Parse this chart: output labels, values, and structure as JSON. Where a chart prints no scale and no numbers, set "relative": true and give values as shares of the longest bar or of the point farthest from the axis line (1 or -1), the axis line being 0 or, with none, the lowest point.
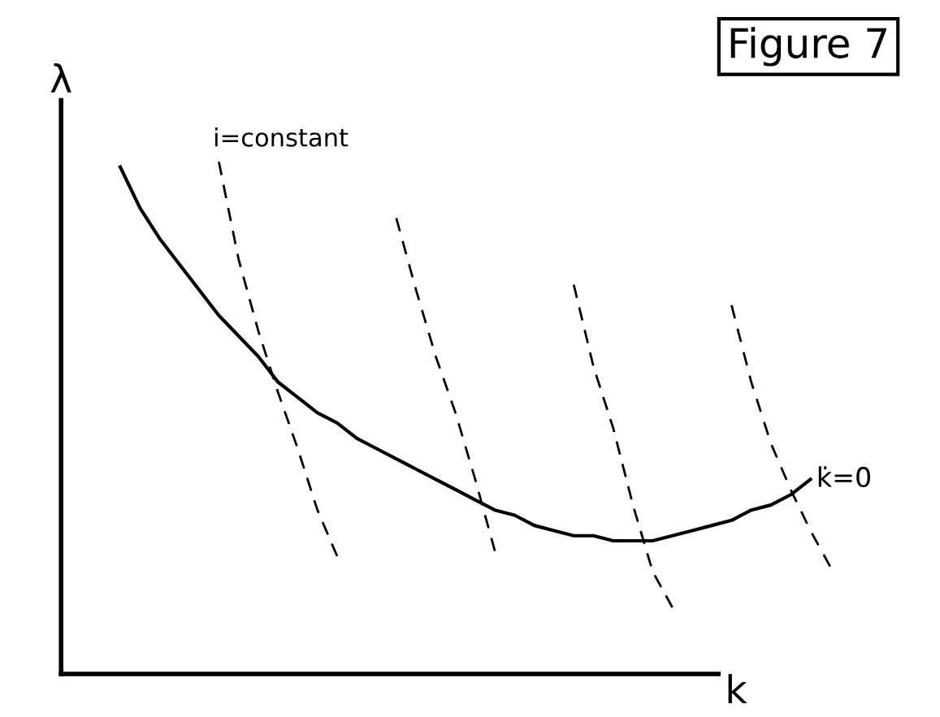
{
  "chart_data": {
    "type": "line",
    "title": "Figure 7",
    "xlabel": "k",
    "ylabel": "λ",
    "relative": true,
    "marker": "none",
    "categories": [
      null,
      null,
      null,
      null,
      null,
      null,
      null,
      null,
      null,
      null,
      null,
      null,
      null,
      null,
      null,
      null,
      null,
      null,
      null,
      null,
      null,
      null,
      null,
      null,
      null,
      null,
      null,
      null,
      null,
      null,
      null,
      null,
      null,
      null,
      null,
      null,
      null,
      null,
      null,
      null,
      null
    ],
    "series": [
      {
        "name": "k̇=0",
        "color": "#000000",
        "line_style": "solid",
        "values": [
          null,
          null,
          null,
          0.99,
          0.91,
          0.85,
          0.8,
          0.75,
          0.7,
          0.66,
          0.62,
          0.57,
          0.54,
          0.51,
          0.49,
          0.46,
          0.44,
          0.42,
          0.4,
          0.38,
          0.36,
          0.34,
          0.32,
          0.31,
          0.29,
          0.28,
          0.27,
          0.27,
          0.26,
          0.26,
          0.26,
          0.27,
          0.28,
          0.29,
          0.3,
          0.32,
          0.33,
          0.35,
          0.38,
          null,
          null
        ]
      },
      {
        "name": "i=constant",
        "color": "#000000",
        "line_style": "dashed",
        "values": [
          null,
          null,
          null,
          null,
          null,
          null,
          null,
          null,
          1.0,
          0.81,
          0.67,
          0.55,
          0.44,
          0.32,
          0.23,
          null,
          null,
          null,
          null,
          null,
          null,
          null,
          null,
          null,
          null,
          null,
          null,
          null,
          null,
          null,
          null,
          null,
          null,
          null,
          null,
          null,
          null,
          null,
          null,
          null,
          null
        ]
      },
      {
        "color": "#000000",
        "line_style": "dashed",
        "values": [
          null,
          null,
          null,
          null,
          null,
          null,
          null,
          null,
          null,
          null,
          null,
          null,
          null,
          null,
          null,
          null,
          null,
          0.89,
          0.75,
          0.62,
          0.51,
          0.38,
          0.24,
          null,
          null,
          null,
          null,
          null,
          null,
          null,
          null,
          null,
          null,
          null,
          null,
          null,
          null,
          null,
          null,
          null,
          null
        ]
      },
      {
        "color": "#000000",
        "line_style": "dashed",
        "values": [
          null,
          null,
          null,
          null,
          null,
          null,
          null,
          null,
          null,
          null,
          null,
          null,
          null,
          null,
          null,
          null,
          null,
          null,
          null,
          null,
          null,
          null,
          null,
          null,
          null,
          null,
          0.76,
          0.6,
          0.48,
          0.33,
          0.2,
          0.13,
          null,
          null,
          null,
          null,
          null,
          null,
          null,
          null,
          null
        ]
      },
      {
        "color": "#000000",
        "line_style": "dashed",
        "values": [
          null,
          null,
          null,
          null,
          null,
          null,
          null,
          null,
          null,
          null,
          null,
          null,
          null,
          null,
          null,
          null,
          null,
          null,
          null,
          null,
          null,
          null,
          null,
          null,
          null,
          null,
          null,
          null,
          null,
          null,
          null,
          null,
          null,
          null,
          0.72,
          0.57,
          0.45,
          0.36,
          0.28,
          0.21,
          null
        ]
      }
    ]
  }
}
